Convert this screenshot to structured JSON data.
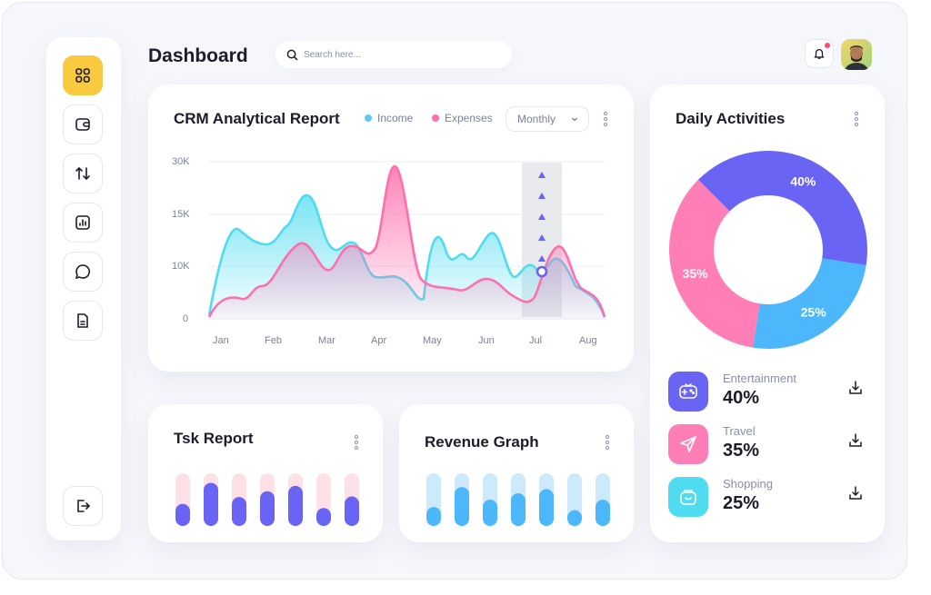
{
  "header": {
    "title": "Dashboard",
    "search_placeholder": "Search here..."
  },
  "sidebar": {
    "items": [
      {
        "name": "dashboard",
        "icon": "grid-icon",
        "active": true
      },
      {
        "name": "wallet",
        "icon": "wallet-icon",
        "active": false
      },
      {
        "name": "transfer",
        "icon": "transfer-icon",
        "active": false
      },
      {
        "name": "analytics",
        "icon": "bar-chart-icon",
        "active": false
      },
      {
        "name": "messages",
        "icon": "chat-icon",
        "active": false
      },
      {
        "name": "documents",
        "icon": "document-icon",
        "active": false
      }
    ],
    "logout_icon": "logout-icon"
  },
  "crm": {
    "title": "CRM Analytical Report",
    "legend": [
      {
        "label": "Income",
        "color": "#5bc8f5"
      },
      {
        "label": "Expenses",
        "color": "#ff6fae"
      }
    ],
    "select_value": "Monthly"
  },
  "chart_data": {
    "type": "area",
    "categories": [
      "Jan",
      "Feb",
      "Mar",
      "Apr",
      "May",
      "Jun",
      "Jul",
      "Aug"
    ],
    "y_ticks": [
      "30K",
      "15K",
      "10K",
      "0"
    ],
    "series": [
      {
        "name": "Income",
        "color": "#4fdcf0"
      },
      {
        "name": "Expenses",
        "color": "#ff6fae"
      }
    ],
    "highlight_category": "Jul"
  },
  "daily": {
    "title": "Daily Activities",
    "donut": [
      {
        "label": "40%",
        "value": 40,
        "color": "#6a64f5"
      },
      {
        "label": "25%",
        "value": 25,
        "color": "#4cb8fb"
      },
      {
        "label": "35%",
        "value": 35,
        "color": "#ff7eb6"
      }
    ],
    "activities": [
      {
        "name": "Entertainment",
        "value": "40%",
        "icon": "gamepad-icon",
        "color": "#6a64f5"
      },
      {
        "name": "Travel",
        "value": "35%",
        "icon": "send-icon",
        "color": "#ff7eb6"
      },
      {
        "name": "Shopping",
        "value": "25%",
        "icon": "shopping-bag-icon",
        "color": "#4fdcf0"
      }
    ]
  },
  "task_report": {
    "title": "Tsk Report",
    "bar_color": "#6a64f5",
    "track_color": "#fde1e7",
    "bars": [
      0.42,
      0.82,
      0.55,
      0.66,
      0.76,
      0.34,
      0.56
    ]
  },
  "revenue": {
    "title": "Revenue Graph",
    "bar_color": "#4cb8fb",
    "track_color": "#cdeafd",
    "bars": [
      0.36,
      0.74,
      0.5,
      0.62,
      0.7,
      0.3,
      0.5
    ]
  }
}
